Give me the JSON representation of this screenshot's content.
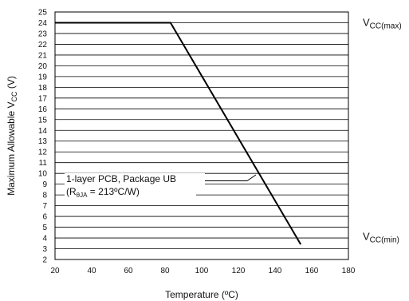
{
  "chart_data": {
    "type": "line",
    "title": "",
    "xlabel": "Temperature (ºC)",
    "ylabel_prefix": "Maximum Allowable V",
    "ylabel_sub": "CC",
    "ylabel_suffix": " (V)",
    "xlim": [
      20,
      180
    ],
    "ylim": [
      2,
      25
    ],
    "x_ticks": [
      20,
      40,
      60,
      80,
      100,
      120,
      140,
      160,
      180
    ],
    "y_ticks": [
      2,
      3,
      4,
      5,
      6,
      7,
      8,
      9,
      10,
      11,
      12,
      13,
      14,
      15,
      16,
      17,
      18,
      19,
      20,
      21,
      22,
      23,
      24,
      25
    ],
    "grid": {
      "horizontal": true,
      "vertical": false
    },
    "series": [
      {
        "x": [
          20,
          83,
          154
        ],
        "y": [
          24,
          24,
          3.4
        ]
      }
    ],
    "annotations": {
      "pcb_line1": "1-layer PCB, Package UB",
      "pcb_line2_prefix": "(R",
      "pcb_line2_sub": "θJA",
      "pcb_line2_suffix": " = 213ºC/W)",
      "vcc_max_main": "V",
      "vcc_max_sub": "CC(max)",
      "vcc_min_main": "V",
      "vcc_min_sub": "CC(min)"
    },
    "colors": {
      "line": "#000000",
      "grid": "#000000",
      "text": "#111111",
      "background": "#ffffff"
    }
  }
}
